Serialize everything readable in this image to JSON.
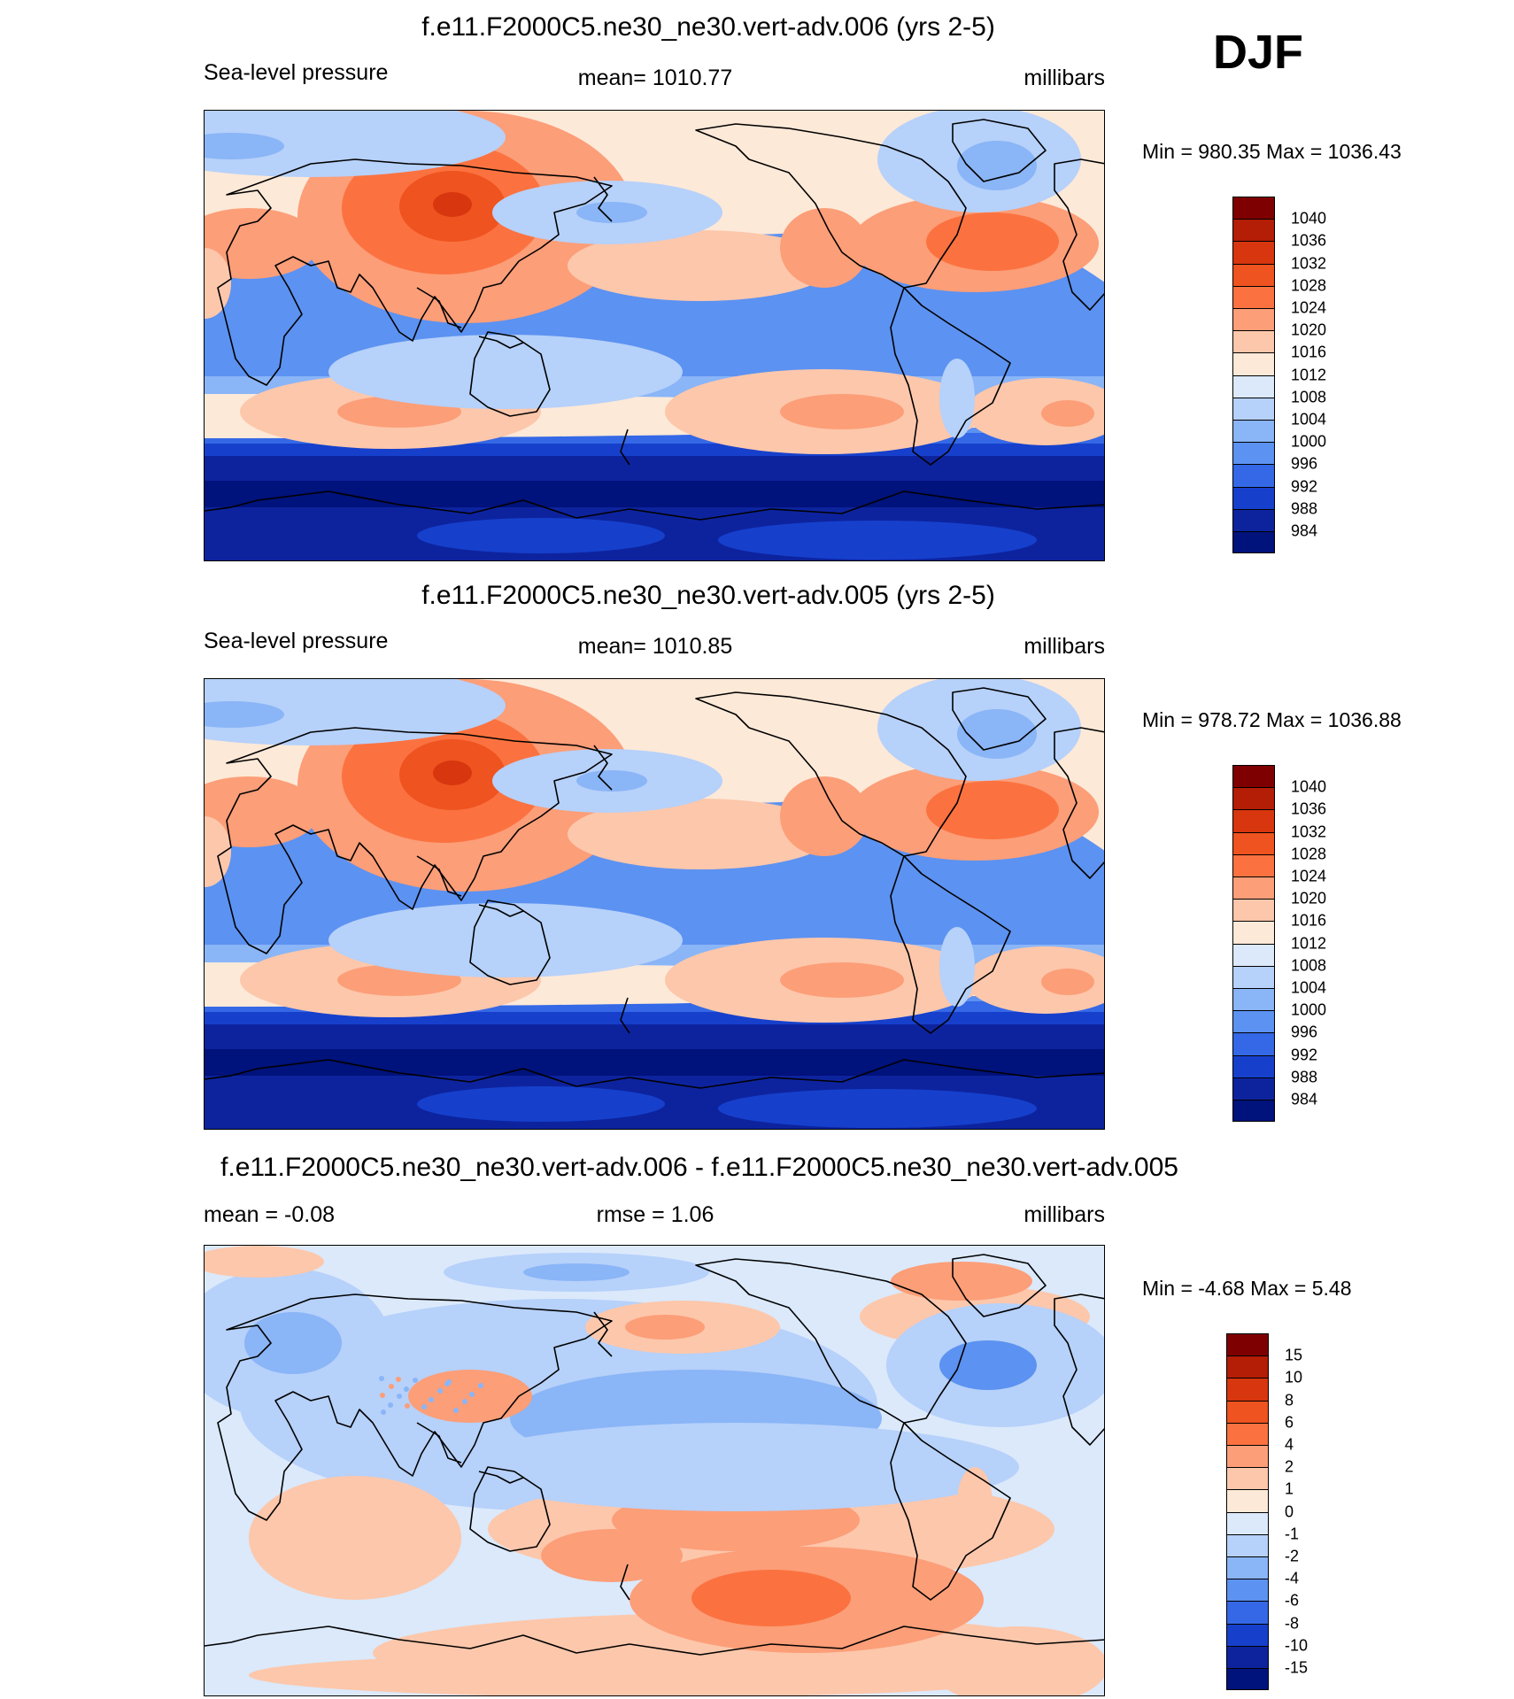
{
  "season": "DJF",
  "panels": [
    {
      "title": "f.e11.F2000C5.ne30_ne30.vert-adv.006 (yrs 2-5)",
      "left_label": "Sea-level pressure",
      "center_label": "mean= 1010.77",
      "right_label": "millibars",
      "minmax": "Min = 980.35 Max = 1036.43",
      "kind": "abs",
      "colorbar": {
        "labels": [
          "1040",
          "1036",
          "1032",
          "1028",
          "1024",
          "1020",
          "1016",
          "1012",
          "1008",
          "1004",
          "1000",
          "996",
          "992",
          "988",
          "984"
        ],
        "colors": [
          "#7f0000",
          "#b41d06",
          "#d8360e",
          "#ef531f",
          "#fb7240",
          "#fc9e78",
          "#fdc7ab",
          "#fde9d8",
          "#dbe9fb",
          "#b6d1fa",
          "#8ab5f7",
          "#5c92f1",
          "#3468e6",
          "#1640cc",
          "#0d239e",
          "#00127b"
        ]
      }
    },
    {
      "title": "f.e11.F2000C5.ne30_ne30.vert-adv.005 (yrs 2-5)",
      "left_label": "Sea-level pressure",
      "center_label": "mean= 1010.85",
      "right_label": "millibars",
      "minmax": "Min = 978.72 Max = 1036.88",
      "kind": "abs",
      "colorbar": {
        "labels": [
          "1040",
          "1036",
          "1032",
          "1028",
          "1024",
          "1020",
          "1016",
          "1012",
          "1008",
          "1004",
          "1000",
          "996",
          "992",
          "988",
          "984"
        ],
        "colors": [
          "#7f0000",
          "#b41d06",
          "#d8360e",
          "#ef531f",
          "#fb7240",
          "#fc9e78",
          "#fdc7ab",
          "#fde9d8",
          "#dbe9fb",
          "#b6d1fa",
          "#8ab5f7",
          "#5c92f1",
          "#3468e6",
          "#1640cc",
          "#0d239e",
          "#00127b"
        ]
      }
    },
    {
      "title": "f.e11.F2000C5.ne30_ne30.vert-adv.006 - f.e11.F2000C5.ne30_ne30.vert-adv.005",
      "left_label": "mean =  -0.08",
      "center_label": "rmse =   1.06",
      "right_label": "millibars",
      "minmax": "Min =  -4.68 Max =   5.48",
      "kind": "diff",
      "colorbar": {
        "labels": [
          "15",
          "10",
          "8",
          "6",
          "4",
          "2",
          "1",
          "0",
          "-1",
          "-2",
          "-4",
          "-6",
          "-8",
          "-10",
          "-15"
        ],
        "colors": [
          "#7f0000",
          "#b41d06",
          "#d8360e",
          "#ef531f",
          "#fb7240",
          "#fc9e78",
          "#fdc7ab",
          "#fde9d8",
          "#dbe9fb",
          "#b6d1fa",
          "#8ab5f7",
          "#5c92f1",
          "#3468e6",
          "#1640cc",
          "#0d239e",
          "#00127b"
        ]
      }
    }
  ]
}
